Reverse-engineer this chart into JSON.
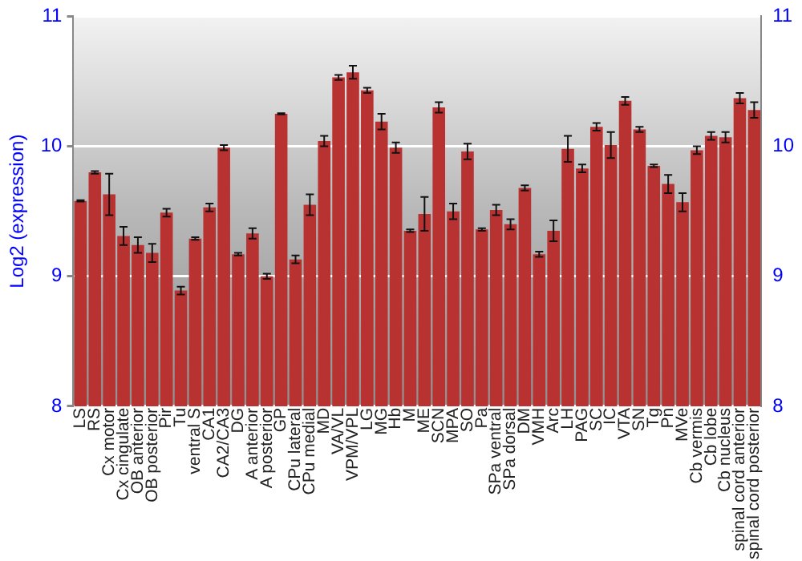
{
  "chart_data": {
    "type": "bar",
    "ylabel": "Log2 (expression)",
    "categories": [
      "LS",
      "RS",
      "Cx motor",
      "Cx cingulate",
      "OB anterior",
      "OB posterior",
      "Pir",
      "Tu",
      "ventral S",
      "CA1",
      "CA2/CA3",
      "DG",
      "A anterior",
      "A posterior",
      "GP",
      "CPu lateral",
      "CPu medial",
      "MD",
      "VA/VL",
      "VPM/VPL",
      "LG",
      "MG",
      "Hb",
      "M",
      "ME",
      "SCN",
      "MPA",
      "SO",
      "Pa",
      "SPa ventral",
      "SPa dorsal",
      "DM",
      "VMH",
      "Arc",
      "LH",
      "PAG",
      "SC",
      "IC",
      "VTA",
      "SN",
      "Tg",
      "Pn",
      "MVe",
      "Cb vermis",
      "Cb lobe",
      "Cb nucleus",
      "spinal cord anterior",
      "spinal cord posterior"
    ],
    "values": [
      9.58,
      9.8,
      9.63,
      9.31,
      9.24,
      9.18,
      9.49,
      8.89,
      9.29,
      9.53,
      9.99,
      9.17,
      9.33,
      9.0,
      10.25,
      9.13,
      9.55,
      10.04,
      10.53,
      10.57,
      10.43,
      10.19,
      9.99,
      9.35,
      9.48,
      10.3,
      9.5,
      9.96,
      9.36,
      9.51,
      9.4,
      9.68,
      9.17,
      9.35,
      9.98,
      9.83,
      10.15,
      10.01,
      10.35,
      10.13,
      9.85,
      9.71,
      9.57,
      9.97,
      10.08,
      10.07,
      10.37,
      10.28
    ],
    "errors": [
      0.005,
      0.01,
      0.16,
      0.07,
      0.06,
      0.07,
      0.03,
      0.03,
      0.01,
      0.03,
      0.02,
      0.01,
      0.04,
      0.02,
      0.005,
      0.03,
      0.08,
      0.04,
      0.02,
      0.05,
      0.02,
      0.06,
      0.04,
      0.01,
      0.13,
      0.04,
      0.06,
      0.06,
      0.01,
      0.04,
      0.04,
      0.02,
      0.02,
      0.08,
      0.1,
      0.03,
      0.03,
      0.1,
      0.03,
      0.02,
      0.01,
      0.07,
      0.07,
      0.03,
      0.03,
      0.04,
      0.04,
      0.06
    ],
    "color": "#b83232",
    "ylim": [
      8,
      11
    ],
    "yticks": [
      8,
      9,
      10,
      11
    ],
    "y2lim": [
      8,
      11
    ],
    "y2ticks": [
      8,
      9,
      10,
      11
    ],
    "grid": "y",
    "legend": false
  }
}
